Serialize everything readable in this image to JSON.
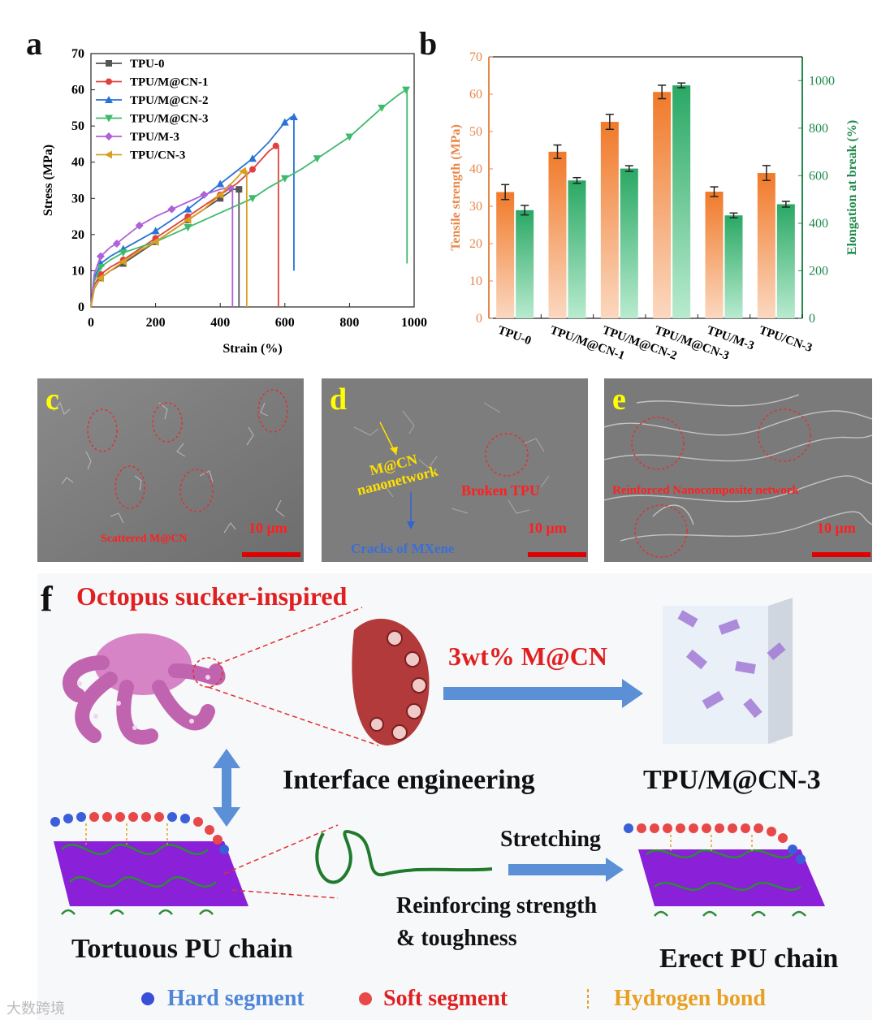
{
  "panels": {
    "a": "a",
    "b": "b",
    "c": "c",
    "d": "d",
    "e": "e",
    "f": "f"
  },
  "chart_data": [
    {
      "type": "line",
      "xlabel": "Strain (%)",
      "ylabel": "Stress (MPa)",
      "xlim": [
        0,
        1000
      ],
      "ylim": [
        0,
        70
      ],
      "xticks": [
        0,
        200,
        400,
        600,
        800,
        1000
      ],
      "yticks": [
        0,
        10,
        20,
        30,
        40,
        50,
        60,
        70
      ],
      "legend_position": "top-left",
      "series": [
        {
          "name": "TPU-0",
          "color": "#555555",
          "marker": "square",
          "break": 458,
          "points": [
            [
              0,
              0
            ],
            [
              10,
              5
            ],
            [
              30,
              8
            ],
            [
              60,
              10
            ],
            [
              100,
              12
            ],
            [
              150,
              15
            ],
            [
              200,
              18
            ],
            [
              250,
              21
            ],
            [
              300,
              24
            ],
            [
              350,
              27
            ],
            [
              400,
              30
            ],
            [
              440,
              32.5
            ],
            [
              458,
              32.5
            ]
          ]
        },
        {
          "name": "TPU/M@CN-1",
          "color": "#e0413d",
          "marker": "circle",
          "break": 580,
          "points": [
            [
              0,
              0
            ],
            [
              10,
              6
            ],
            [
              30,
              9
            ],
            [
              60,
              11
            ],
            [
              100,
              13
            ],
            [
              150,
              16
            ],
            [
              200,
              19
            ],
            [
              250,
              22
            ],
            [
              300,
              25
            ],
            [
              350,
              28
            ],
            [
              400,
              31
            ],
            [
              450,
              34
            ],
            [
              500,
              38
            ],
            [
              550,
              43
            ],
            [
              572,
              44.5
            ],
            [
              580,
              44.5
            ]
          ]
        },
        {
          "name": "TPU/M@CN-2",
          "color": "#2873d6",
          "marker": "triangle",
          "break": 628,
          "points": [
            [
              0,
              0
            ],
            [
              10,
              8
            ],
            [
              30,
              12
            ],
            [
              60,
              14
            ],
            [
              100,
              16
            ],
            [
              150,
              18.5
            ],
            [
              200,
              21
            ],
            [
              250,
              24
            ],
            [
              300,
              27
            ],
            [
              350,
              30.5
            ],
            [
              400,
              34
            ],
            [
              450,
              37.5
            ],
            [
              500,
              41
            ],
            [
              550,
              45.5
            ],
            [
              600,
              51
            ],
            [
              620,
              52.5
            ],
            [
              628,
              52.5
            ]
          ]
        },
        {
          "name": "TPU/M@CN-3",
          "color": "#3dbb6a",
          "marker": "triangle-down",
          "break": 978,
          "points": [
            [
              0,
              0
            ],
            [
              10,
              7
            ],
            [
              30,
              11
            ],
            [
              60,
              13
            ],
            [
              100,
              15
            ],
            [
              200,
              18
            ],
            [
              300,
              22
            ],
            [
              400,
              26
            ],
            [
              500,
              30
            ],
            [
              550,
              33
            ],
            [
              600,
              35.5
            ],
            [
              650,
              38
            ],
            [
              700,
              41
            ],
            [
              750,
              44
            ],
            [
              800,
              47
            ],
            [
              850,
              51
            ],
            [
              900,
              55
            ],
            [
              950,
              58.5
            ],
            [
              975,
              60
            ],
            [
              978,
              60
            ]
          ]
        },
        {
          "name": "TPU/M-3",
          "color": "#b060d8",
          "marker": "diamond",
          "break": 438,
          "points": [
            [
              0,
              0
            ],
            [
              10,
              9
            ],
            [
              30,
              14
            ],
            [
              60,
              16.5
            ],
            [
              80,
              17.5
            ],
            [
              100,
              19
            ],
            [
              150,
              22.5
            ],
            [
              200,
              25
            ],
            [
              250,
              27
            ],
            [
              300,
              29
            ],
            [
              350,
              31
            ],
            [
              400,
              32.5
            ],
            [
              430,
              33
            ],
            [
              438,
              33
            ]
          ]
        },
        {
          "name": "TPU/CN-3",
          "color": "#d8a020",
          "marker": "triangle-left",
          "break": 482,
          "points": [
            [
              0,
              0
            ],
            [
              10,
              5
            ],
            [
              30,
              8
            ],
            [
              60,
              10
            ],
            [
              100,
              12.5
            ],
            [
              150,
              15.5
            ],
            [
              200,
              18
            ],
            [
              250,
              21
            ],
            [
              300,
              24
            ],
            [
              350,
              27
            ],
            [
              400,
              31
            ],
            [
              450,
              35.5
            ],
            [
              470,
              37.5
            ],
            [
              482,
              37.5
            ]
          ]
        }
      ]
    },
    {
      "type": "bar",
      "categories": [
        "TPU-0",
        "TPU/M@CN-1",
        "TPU/M@CN-2",
        "TPU/M@CN-3",
        "TPU/M-3",
        "TPU/CN-3"
      ],
      "ylabel_left": "Tensile strength (MPa)",
      "ylabel_right": "Elongation at break (%)",
      "ylim_left": [
        0,
        70
      ],
      "ylim_right": [
        0,
        1100
      ],
      "yticks_left": [
        0,
        10,
        20,
        30,
        40,
        50,
        60,
        70
      ],
      "yticks_right": [
        0,
        200,
        400,
        600,
        800,
        1000
      ],
      "left_color": "#e8874a",
      "right_color": "#1f8a4c",
      "series": [
        {
          "axis": "left",
          "values": [
            33.8,
            44.6,
            52.6,
            60.6,
            33.9,
            38.9
          ],
          "errors": [
            2.0,
            1.8,
            2.0,
            1.8,
            1.3,
            2.0
          ]
        },
        {
          "axis": "right",
          "values": [
            455,
            580,
            630,
            980,
            433,
            480
          ],
          "errors": [
            20,
            12,
            12,
            10,
            10,
            12
          ]
        }
      ]
    }
  ],
  "sem": {
    "c": {
      "label": "Scattered M@CN",
      "scale": "10 μm"
    },
    "d": {
      "label_network": "M@CN\nnanonetwork",
      "label_broken": "Broken TPU",
      "label_cracks": "Cracks of MXene",
      "scale": "10 μm"
    },
    "e": {
      "label": "Reinforced Nanocomposite network",
      "scale": "10 μm"
    }
  },
  "f": {
    "title": "Octopus sucker-inspired",
    "dose": "3wt% M@CN",
    "interface": "Interface engineering",
    "composite": "TPU/M@CN-3",
    "stretching": "Stretching",
    "reinforce_1": "Reinforcing strength",
    "reinforce_2": "& toughness",
    "tortuous": "Tortuous PU chain",
    "erect": "Erect PU chain",
    "legend": {
      "hard": "Hard segment",
      "soft": "Soft  segment",
      "hbond": "Hydrogen bond"
    },
    "watermark": "大数跨境"
  }
}
